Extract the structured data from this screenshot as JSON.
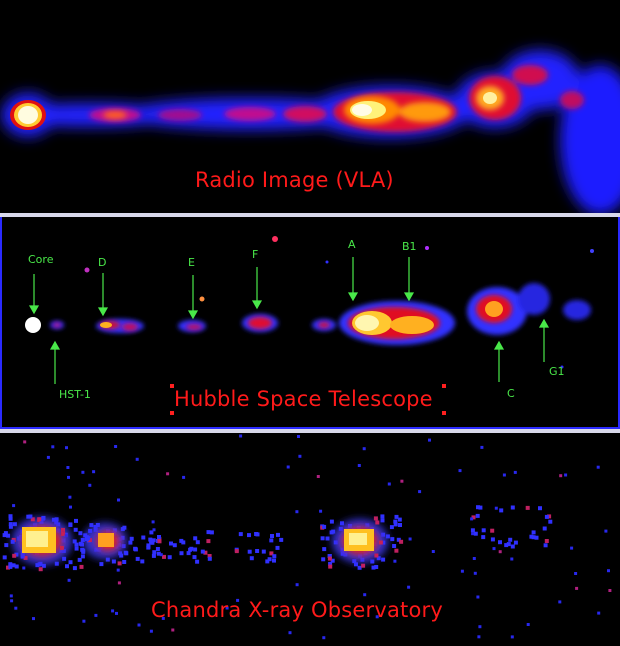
{
  "panels": {
    "radio": {
      "caption": "Radio Image (VLA)"
    },
    "hubble": {
      "caption": "Hubble Space Telescope",
      "labels": {
        "core": "Core",
        "hst1": "HST-1",
        "d": "D",
        "e": "E",
        "f": "F",
        "a": "A",
        "b1": "B1",
        "c": "C",
        "g1": "G1"
      }
    },
    "chandra": {
      "caption": "Chandra X-ray Observatory"
    }
  },
  "colors": {
    "caption": "#ff1a1a",
    "label": "#49e849",
    "divider": "#d8d8ea",
    "hubble_border": "#2a2aff"
  }
}
